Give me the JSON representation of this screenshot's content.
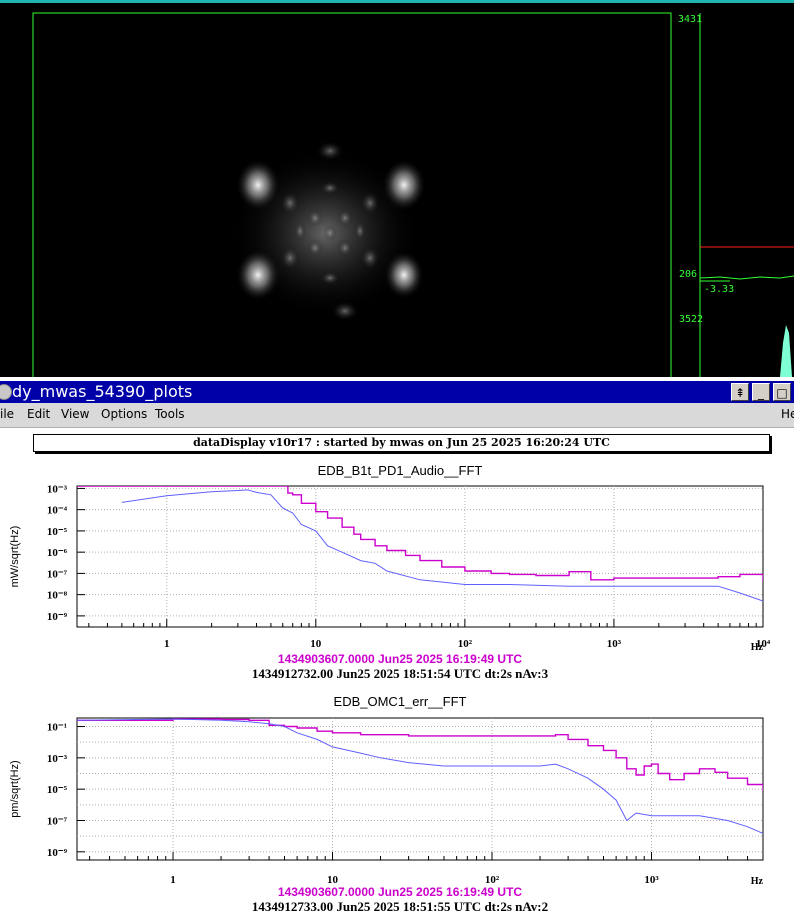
{
  "camera": {
    "scale_top": "3431",
    "scale_mid": "206",
    "scale_min": "-3.33",
    "scale_bottom": "3522"
  },
  "window": {
    "title": "dy_mwas_54390_plots",
    "button_pin": "⇞",
    "button_minimize": "_",
    "button_maximize": "□"
  },
  "menu": {
    "file": "ile",
    "edit": "Edit",
    "view": "View",
    "options": "Options",
    "tools": "Tools",
    "help": "He"
  },
  "header": "dataDisplay v10r17 : started by mwas on Jun 25 2025 16:20:24 UTC",
  "colors": {
    "ref": "#cc00cc",
    "live": "#6060ff",
    "grid": "#b0b0b0"
  },
  "chart_data": [
    {
      "type": "line",
      "title": "EDB_B1t_PD1_Audio__FFT",
      "ylabel": "mW/sqrt(Hz)",
      "xlabel": "Hz",
      "xscale": "log",
      "yscale": "log",
      "xlim": [
        0.25,
        10000
      ],
      "ylim": [
        3e-10,
        0.0013
      ],
      "y_ticks": [
        "10⁻³",
        "10⁻⁴",
        "10⁻⁵",
        "10⁻⁶",
        "10⁻⁷",
        "10⁻⁸",
        "10⁻⁹"
      ],
      "x_ticks": [
        "1",
        "10",
        "10²",
        "10³",
        "10⁴"
      ],
      "ref_label": "1434903607.0000 Jun25 2025 16:19:49 UTC",
      "live_label": "1434912732.00 Jun25 2025 18:51:54 UTC dt:2s nAv:3",
      "series": [
        {
          "role": "ref",
          "x": [
            0.25,
            3,
            4,
            5,
            6,
            6.5,
            7,
            8,
            10,
            12,
            15,
            18,
            20,
            25,
            30,
            40,
            50,
            70,
            100,
            150,
            200,
            300,
            500,
            700,
            1000,
            2000,
            3000,
            5000,
            7000,
            10000
          ],
          "y": [
            0.0013,
            0.0013,
            0.0013,
            0.0013,
            0.0013,
            0.0006,
            0.0005,
            0.0002,
            8e-05,
            4e-05,
            1.5e-05,
            7e-06,
            4e-06,
            2e-06,
            1.2e-06,
            7e-07,
            4e-07,
            2e-07,
            1.3e-07,
            1e-07,
            9e-08,
            8e-08,
            1.2e-07,
            5e-08,
            6e-08,
            6e-08,
            6e-08,
            7e-08,
            9e-08,
            4e-08
          ]
        },
        {
          "role": "live",
          "x": [
            0.5,
            1,
            2,
            3,
            3.5,
            4,
            5,
            6,
            7,
            8,
            10,
            12,
            15,
            20,
            25,
            30,
            50,
            100,
            200,
            500,
            700,
            1000,
            2000,
            5000,
            7000,
            10000
          ],
          "y": [
            0.00022,
            0.00045,
            0.0007,
            0.0008,
            0.00085,
            0.00065,
            0.0005,
            0.00012,
            7e-05,
            2e-05,
            1e-05,
            2e-06,
            1e-06,
            4e-07,
            3e-07,
            1.3e-07,
            5e-08,
            3e-08,
            3e-08,
            2.5e-08,
            2.5e-08,
            2.5e-08,
            2.5e-08,
            2.5e-08,
            1.2e-08,
            5e-09
          ]
        }
      ]
    },
    {
      "type": "line",
      "title": "EDB_OMC1_err__FFT",
      "ylabel": "pm/sqrt(Hz)",
      "xlabel": "Hz",
      "xscale": "log",
      "yscale": "log",
      "xlim": [
        0.25,
        5000
      ],
      "ylim": [
        3e-10,
        0.35
      ],
      "y_ticks": [
        "10⁻¹",
        "10⁻³",
        "10⁻⁵",
        "10⁻⁷",
        "10⁻⁹"
      ],
      "x_ticks": [
        "1",
        "10",
        "10²",
        "10³"
      ],
      "ref_label": "1434903607.0000 Jun25 2025 16:19:49 UTC",
      "live_label": "1434912733.00 Jun25 2025 18:51:55 UTC dt:2s nAv:2",
      "series": [
        {
          "role": "ref",
          "x": [
            0.25,
            1,
            2,
            3,
            4,
            5,
            6,
            8,
            10,
            12,
            15,
            20,
            30,
            50,
            100,
            200,
            250,
            300,
            400,
            500,
            600,
            700,
            800,
            900,
            1000,
            1100,
            1300,
            1600,
            2000,
            2500,
            3000,
            4000,
            5000
          ],
          "y": [
            0.25,
            0.3,
            0.28,
            0.25,
            0.12,
            0.1,
            0.08,
            0.05,
            0.04,
            0.04,
            0.03,
            0.03,
            0.025,
            0.025,
            0.025,
            0.025,
            0.03,
            0.015,
            0.006,
            0.003,
            0.001,
            0.0002,
            8e-05,
            0.0003,
            0.0004,
            0.0001,
            4e-05,
            0.0001,
            0.0002,
            0.00012,
            5e-05,
            2e-05,
            8e-06
          ]
        },
        {
          "role": "live",
          "x": [
            0.25,
            1,
            2,
            3,
            4,
            5,
            6,
            8,
            10,
            15,
            20,
            30,
            50,
            100,
            200,
            250,
            300,
            400,
            500,
            600,
            700,
            800,
            1000,
            1300,
            2000,
            3000,
            4000,
            5000
          ],
          "y": [
            0.25,
            0.3,
            0.25,
            0.2,
            0.15,
            0.1,
            0.04,
            0.015,
            0.005,
            0.002,
            0.001,
            0.0005,
            0.0003,
            0.0003,
            0.0003,
            0.0004,
            0.0002,
            5e-05,
            1e-05,
            2e-06,
            1e-07,
            3e-07,
            2e-07,
            2e-07,
            2e-07,
            1e-07,
            4e-08,
            1.5e-08
          ]
        }
      ]
    }
  ]
}
